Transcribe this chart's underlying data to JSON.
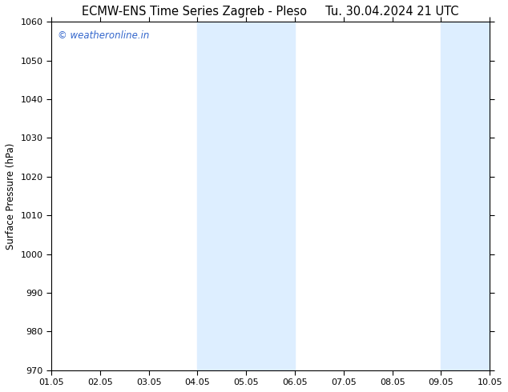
{
  "title_left": "ECMW-ENS Time Series Zagreb - Pleso",
  "title_right": "Tu. 30.04.2024 21 UTC",
  "ylabel": "Surface Pressure (hPa)",
  "ylim": [
    970,
    1060
  ],
  "yticks": [
    970,
    980,
    990,
    1000,
    1010,
    1020,
    1030,
    1040,
    1050,
    1060
  ],
  "xlim": [
    0,
    9
  ],
  "xtick_positions": [
    0,
    1,
    2,
    3,
    4,
    5,
    6,
    7,
    8,
    9
  ],
  "xtick_labels": [
    "01.05",
    "02.05",
    "03.05",
    "04.05",
    "05.05",
    "06.05",
    "07.05",
    "08.05",
    "09.05",
    "10.05"
  ],
  "shade_regions": [
    {
      "xmin": 3.0,
      "xmax": 3.5,
      "color": "#ddeeff"
    },
    {
      "xmin": 4.0,
      "xmax": 5.0,
      "color": "#ddeeff"
    },
    {
      "xmin": 8.0,
      "xmax": 8.5,
      "color": "#ddeeff"
    },
    {
      "xmin": 8.5,
      "xmax": 9.0,
      "color": "#ddeeff"
    }
  ],
  "watermark_text": "© weatheronline.in",
  "watermark_color": "#3366cc",
  "background_color": "#ffffff",
  "plot_bg_color": "#ffffff",
  "title_fontsize": 10.5,
  "ylabel_fontsize": 8.5,
  "tick_fontsize": 8
}
